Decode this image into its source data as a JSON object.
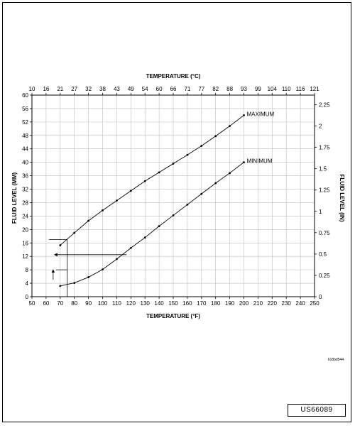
{
  "chart_data": {
    "type": "line",
    "title": "",
    "xlabel": "TEMPERATURE (°F)",
    "x2label": "TEMPERATURE (°C)",
    "ylabel": "FLUID LEVEL (MM)",
    "y2label": "FLUID LEVEL (IN)",
    "xlim": [
      50,
      250
    ],
    "ylim": [
      0,
      60
    ],
    "y2lim": [
      0,
      2.362
    ],
    "grid": true,
    "x_ticks": [
      "50",
      "60",
      "70",
      "80",
      "90",
      "100",
      "110",
      "120",
      "130",
      "140",
      "150",
      "160",
      "170",
      "180",
      "190",
      "200",
      "210",
      "220",
      "230",
      "240",
      "250"
    ],
    "x2_ticks": [
      "10",
      "16",
      "21",
      "27",
      "32",
      "38",
      "43",
      "49",
      "54",
      "60",
      "66",
      "71",
      "77",
      "82",
      "88",
      "93",
      "99",
      "104",
      "110",
      "116",
      "121"
    ],
    "y_ticks": [
      "0",
      "4",
      "8",
      "12",
      "16",
      "20",
      "24",
      "28",
      "32",
      "36",
      "40",
      "44",
      "48",
      "52",
      "56",
      "60"
    ],
    "y2_ticks": [
      "0",
      "0.25",
      "0.5",
      "0.75",
      "1",
      "1.25",
      "1.5",
      "1.75",
      "2",
      "2.25"
    ],
    "series": [
      {
        "name": "MAXIMUM",
        "x": [
          70,
          80,
          90,
          100,
          110,
          120,
          130,
          140,
          150,
          160,
          170,
          180,
          190,
          200
        ],
        "y": [
          15.3,
          19.0,
          22.6,
          25.7,
          28.6,
          31.5,
          34.4,
          37.0,
          39.6,
          42.2,
          44.9,
          47.8,
          50.8,
          54.0
        ]
      },
      {
        "name": "MINIMUM",
        "x": [
          70,
          80,
          90,
          100,
          110,
          120,
          130,
          140,
          150,
          160,
          170,
          180,
          190,
          200
        ],
        "y": [
          3.2,
          4.1,
          5.8,
          8.1,
          11.2,
          14.5,
          17.6,
          21.0,
          24.2,
          27.4,
          30.6,
          33.8,
          36.8,
          40.0
        ]
      }
    ],
    "annotations": {
      "readout_lines": [
        {
          "from": [
            62,
            17
          ],
          "to": [
            75,
            17
          ]
        },
        {
          "from": [
            75,
            17
          ],
          "to": [
            75,
            0
          ]
        },
        {
          "from": [
            117,
            12.5
          ],
          "to": [
            66,
            12.5
          ],
          "arrow": "end"
        },
        {
          "from": [
            67,
            8
          ],
          "to": [
            75,
            8
          ]
        },
        {
          "from": [
            65,
            5
          ],
          "to": [
            65,
            8
          ],
          "arrow": "end"
        }
      ]
    }
  },
  "figure_code": "618bd544",
  "document_id": "US66089"
}
